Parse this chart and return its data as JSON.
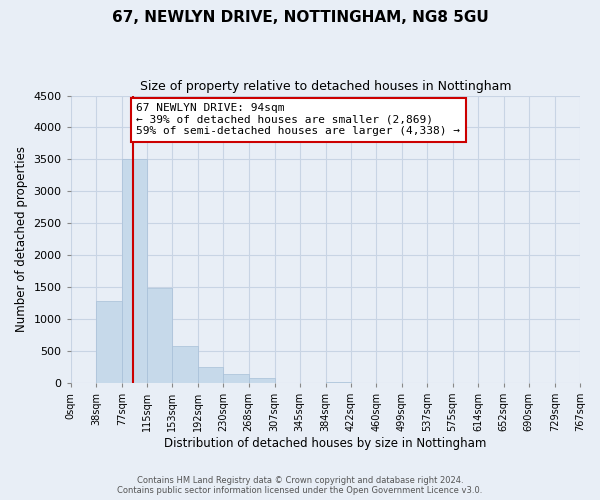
{
  "title": "67, NEWLYN DRIVE, NOTTINGHAM, NG8 5GU",
  "subtitle": "Size of property relative to detached houses in Nottingham",
  "xlabel": "Distribution of detached houses by size in Nottingham",
  "ylabel": "Number of detached properties",
  "footer_line1": "Contains HM Land Registry data © Crown copyright and database right 2024.",
  "footer_line2": "Contains public sector information licensed under the Open Government Licence v3.0.",
  "bin_labels": [
    "0sqm",
    "38sqm",
    "77sqm",
    "115sqm",
    "153sqm",
    "192sqm",
    "230sqm",
    "268sqm",
    "307sqm",
    "345sqm",
    "384sqm",
    "422sqm",
    "460sqm",
    "499sqm",
    "537sqm",
    "575sqm",
    "614sqm",
    "652sqm",
    "690sqm",
    "729sqm",
    "767sqm"
  ],
  "bar_values": [
    0,
    1280,
    3500,
    1480,
    580,
    250,
    135,
    75,
    0,
    0,
    20,
    0,
    0,
    0,
    0,
    0,
    0,
    0,
    0,
    0
  ],
  "bar_color": "#c6d9ea",
  "bar_edge_color": "#a8c0d8",
  "property_size": 94,
  "property_line_color": "#cc0000",
  "annotation_text": "67 NEWLYN DRIVE: 94sqm\n← 39% of detached houses are smaller (2,869)\n59% of semi-detached houses are larger (4,338) →",
  "annotation_box_color": "#ffffff",
  "annotation_box_edge_color": "#cc0000",
  "ylim": [
    0,
    4500
  ],
  "yticks": [
    0,
    500,
    1000,
    1500,
    2000,
    2500,
    3000,
    3500,
    4000,
    4500
  ],
  "grid_color": "#c8d4e4",
  "background_color": "#e8eef6",
  "plot_bg_color": "#e8eef6",
  "bin_edges": [
    0,
    38,
    77,
    115,
    153,
    192,
    230,
    268,
    307,
    345,
    384,
    422,
    460,
    499,
    537,
    575,
    614,
    652,
    690,
    729,
    767
  ]
}
